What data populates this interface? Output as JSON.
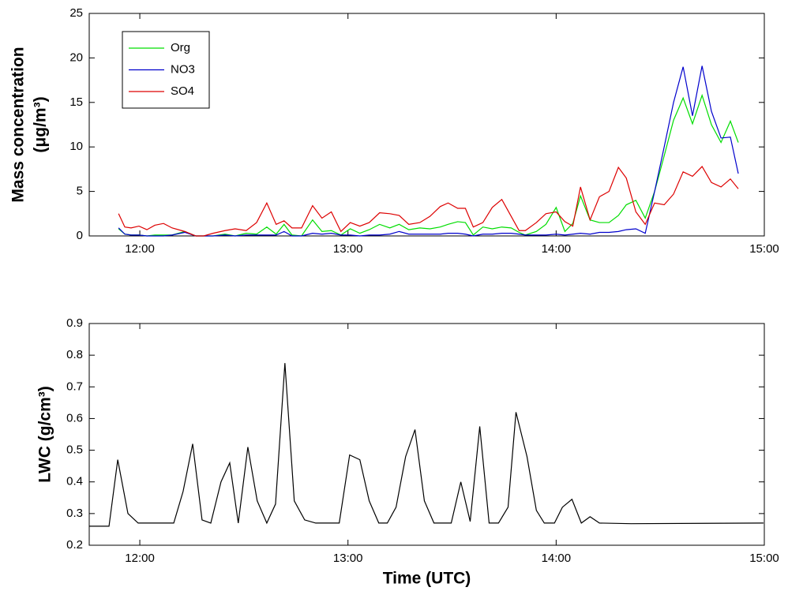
{
  "chart_data": [
    {
      "type": "line",
      "ylabel": [
        "Mass concentration",
        "(μg/m³)"
      ],
      "x": [
        11.898,
        11.928,
        11.958,
        11.996,
        12.034,
        12.072,
        12.114,
        12.155,
        12.216,
        12.269,
        12.307,
        12.352,
        12.409,
        12.458,
        12.511,
        12.561,
        12.61,
        12.655,
        12.693,
        12.731,
        12.777,
        12.83,
        12.875,
        12.92,
        12.966,
        13.011,
        13.057,
        13.102,
        13.152,
        13.201,
        13.246,
        13.292,
        13.345,
        13.394,
        13.443,
        13.481,
        13.527,
        13.564,
        13.602,
        13.648,
        13.693,
        13.739,
        13.784,
        13.822,
        13.852,
        13.905,
        13.951,
        14.0,
        14.042,
        14.08,
        14.117,
        14.163,
        14.208,
        14.254,
        14.299,
        14.337,
        14.383,
        14.428,
        14.473,
        14.519,
        14.564,
        14.61,
        14.655,
        14.701,
        14.746,
        14.792,
        14.837,
        14.875
      ],
      "series": [
        {
          "name": "Org",
          "color": "#00dd00",
          "values": [
            0.8,
            0.2,
            0.1,
            0.1,
            0.0,
            0.1,
            0.1,
            0.1,
            0.5,
            0.0,
            0.0,
            0.0,
            0.2,
            0.0,
            0.3,
            0.2,
            1.0,
            0.2,
            1.3,
            0.1,
            0.0,
            1.8,
            0.5,
            0.6,
            0.1,
            0.8,
            0.3,
            0.7,
            1.3,
            0.9,
            1.3,
            0.7,
            0.9,
            0.8,
            1.0,
            1.3,
            1.6,
            1.5,
            0.1,
            1.0,
            0.8,
            1.0,
            0.9,
            0.4,
            0.1,
            0.5,
            1.3,
            3.2,
            0.5,
            1.4,
            4.5,
            1.8,
            1.5,
            1.5,
            2.3,
            3.5,
            4.0,
            2.0,
            5.0,
            9.0,
            13.0,
            15.5,
            12.6,
            15.8,
            12.5,
            10.5,
            12.9,
            10.5
          ]
        },
        {
          "name": "NO3",
          "color": "#0000cc",
          "values": [
            0.9,
            0.2,
            0.1,
            0.1,
            0.0,
            0.0,
            0.0,
            0.1,
            0.4,
            0.0,
            0.0,
            0.0,
            0.1,
            0.0,
            0.1,
            0.1,
            0.1,
            0.1,
            0.5,
            0.0,
            0.0,
            0.3,
            0.2,
            0.3,
            0.1,
            0.1,
            0.0,
            0.1,
            0.1,
            0.2,
            0.5,
            0.2,
            0.2,
            0.2,
            0.2,
            0.3,
            0.3,
            0.2,
            0.0,
            0.2,
            0.2,
            0.3,
            0.3,
            0.2,
            0.1,
            0.1,
            0.1,
            0.2,
            0.1,
            0.2,
            0.3,
            0.2,
            0.4,
            0.4,
            0.5,
            0.7,
            0.8,
            0.3,
            5.0,
            10.0,
            15.0,
            19.0,
            13.5,
            19.1,
            14.0,
            11.0,
            11.1,
            7.0
          ]
        },
        {
          "name": "SO4",
          "color": "#dd0000",
          "values": [
            2.5,
            1.0,
            0.9,
            1.1,
            0.7,
            1.2,
            1.4,
            0.9,
            0.5,
            0.0,
            0.0,
            0.3,
            0.6,
            0.8,
            0.6,
            1.5,
            3.7,
            1.3,
            1.7,
            0.9,
            0.9,
            3.4,
            2.0,
            2.7,
            0.5,
            1.5,
            1.1,
            1.5,
            2.6,
            2.5,
            2.3,
            1.3,
            1.5,
            2.2,
            3.3,
            3.7,
            3.1,
            3.1,
            1.0,
            1.5,
            3.2,
            4.1,
            2.2,
            0.6,
            0.6,
            1.5,
            2.5,
            2.7,
            1.6,
            1.1,
            5.5,
            1.8,
            4.4,
            5.0,
            7.7,
            6.5,
            2.7,
            1.3,
            3.7,
            3.5,
            4.7,
            7.2,
            6.7,
            7.8,
            6.0,
            5.5,
            6.4,
            5.3
          ]
        }
      ],
      "xlim": [
        11.757,
        15
      ],
      "xticks": [
        {
          "value": 12,
          "label": "12:00"
        },
        {
          "value": 13,
          "label": "13:00"
        },
        {
          "value": 14,
          "label": "14:00"
        },
        {
          "value": 15,
          "label": "15:00"
        }
      ],
      "ylim": [
        0,
        25
      ],
      "yticks": [
        0,
        5,
        10,
        15,
        20,
        25
      ],
      "legend": "upper left",
      "grid": false
    },
    {
      "type": "line",
      "ylabel": [
        "LWC (g/cm³)"
      ],
      "xlabel": "Time (UTC)",
      "x": [
        11.758,
        11.852,
        11.894,
        11.943,
        11.992,
        12.049,
        12.163,
        12.208,
        12.254,
        12.299,
        12.341,
        12.39,
        12.432,
        12.473,
        12.519,
        12.564,
        12.61,
        12.652,
        12.697,
        12.742,
        12.792,
        12.845,
        12.958,
        13.008,
        13.057,
        13.102,
        13.148,
        13.189,
        13.231,
        13.277,
        13.322,
        13.367,
        13.413,
        13.496,
        13.542,
        13.587,
        13.633,
        13.678,
        13.723,
        13.769,
        13.807,
        13.86,
        13.905,
        13.943,
        13.992,
        14.03,
        14.076,
        14.121,
        14.163,
        14.208,
        14.36,
        14.996
      ],
      "series": [
        {
          "color": "#000000",
          "values": [
            0.26,
            0.26,
            0.47,
            0.3,
            0.27,
            0.27,
            0.27,
            0.37,
            0.52,
            0.28,
            0.27,
            0.4,
            0.46,
            0.27,
            0.51,
            0.34,
            0.27,
            0.33,
            0.775,
            0.34,
            0.28,
            0.27,
            0.27,
            0.485,
            0.47,
            0.34,
            0.27,
            0.27,
            0.32,
            0.48,
            0.565,
            0.34,
            0.27,
            0.27,
            0.4,
            0.275,
            0.575,
            0.27,
            0.27,
            0.32,
            0.62,
            0.48,
            0.31,
            0.27,
            0.27,
            0.32,
            0.345,
            0.27,
            0.29,
            0.27,
            0.268,
            0.27
          ]
        }
      ],
      "xlim": [
        11.757,
        15
      ],
      "xticks": [
        {
          "value": 12,
          "label": "12:00"
        },
        {
          "value": 13,
          "label": "13:00"
        },
        {
          "value": 14,
          "label": "14:00"
        },
        {
          "value": 15,
          "label": "15:00"
        }
      ],
      "ylim": [
        0.2,
        0.9
      ],
      "yticks": [
        0.2,
        0.3,
        0.4,
        0.5,
        0.6,
        0.7,
        0.8,
        0.9
      ],
      "grid": false
    }
  ]
}
